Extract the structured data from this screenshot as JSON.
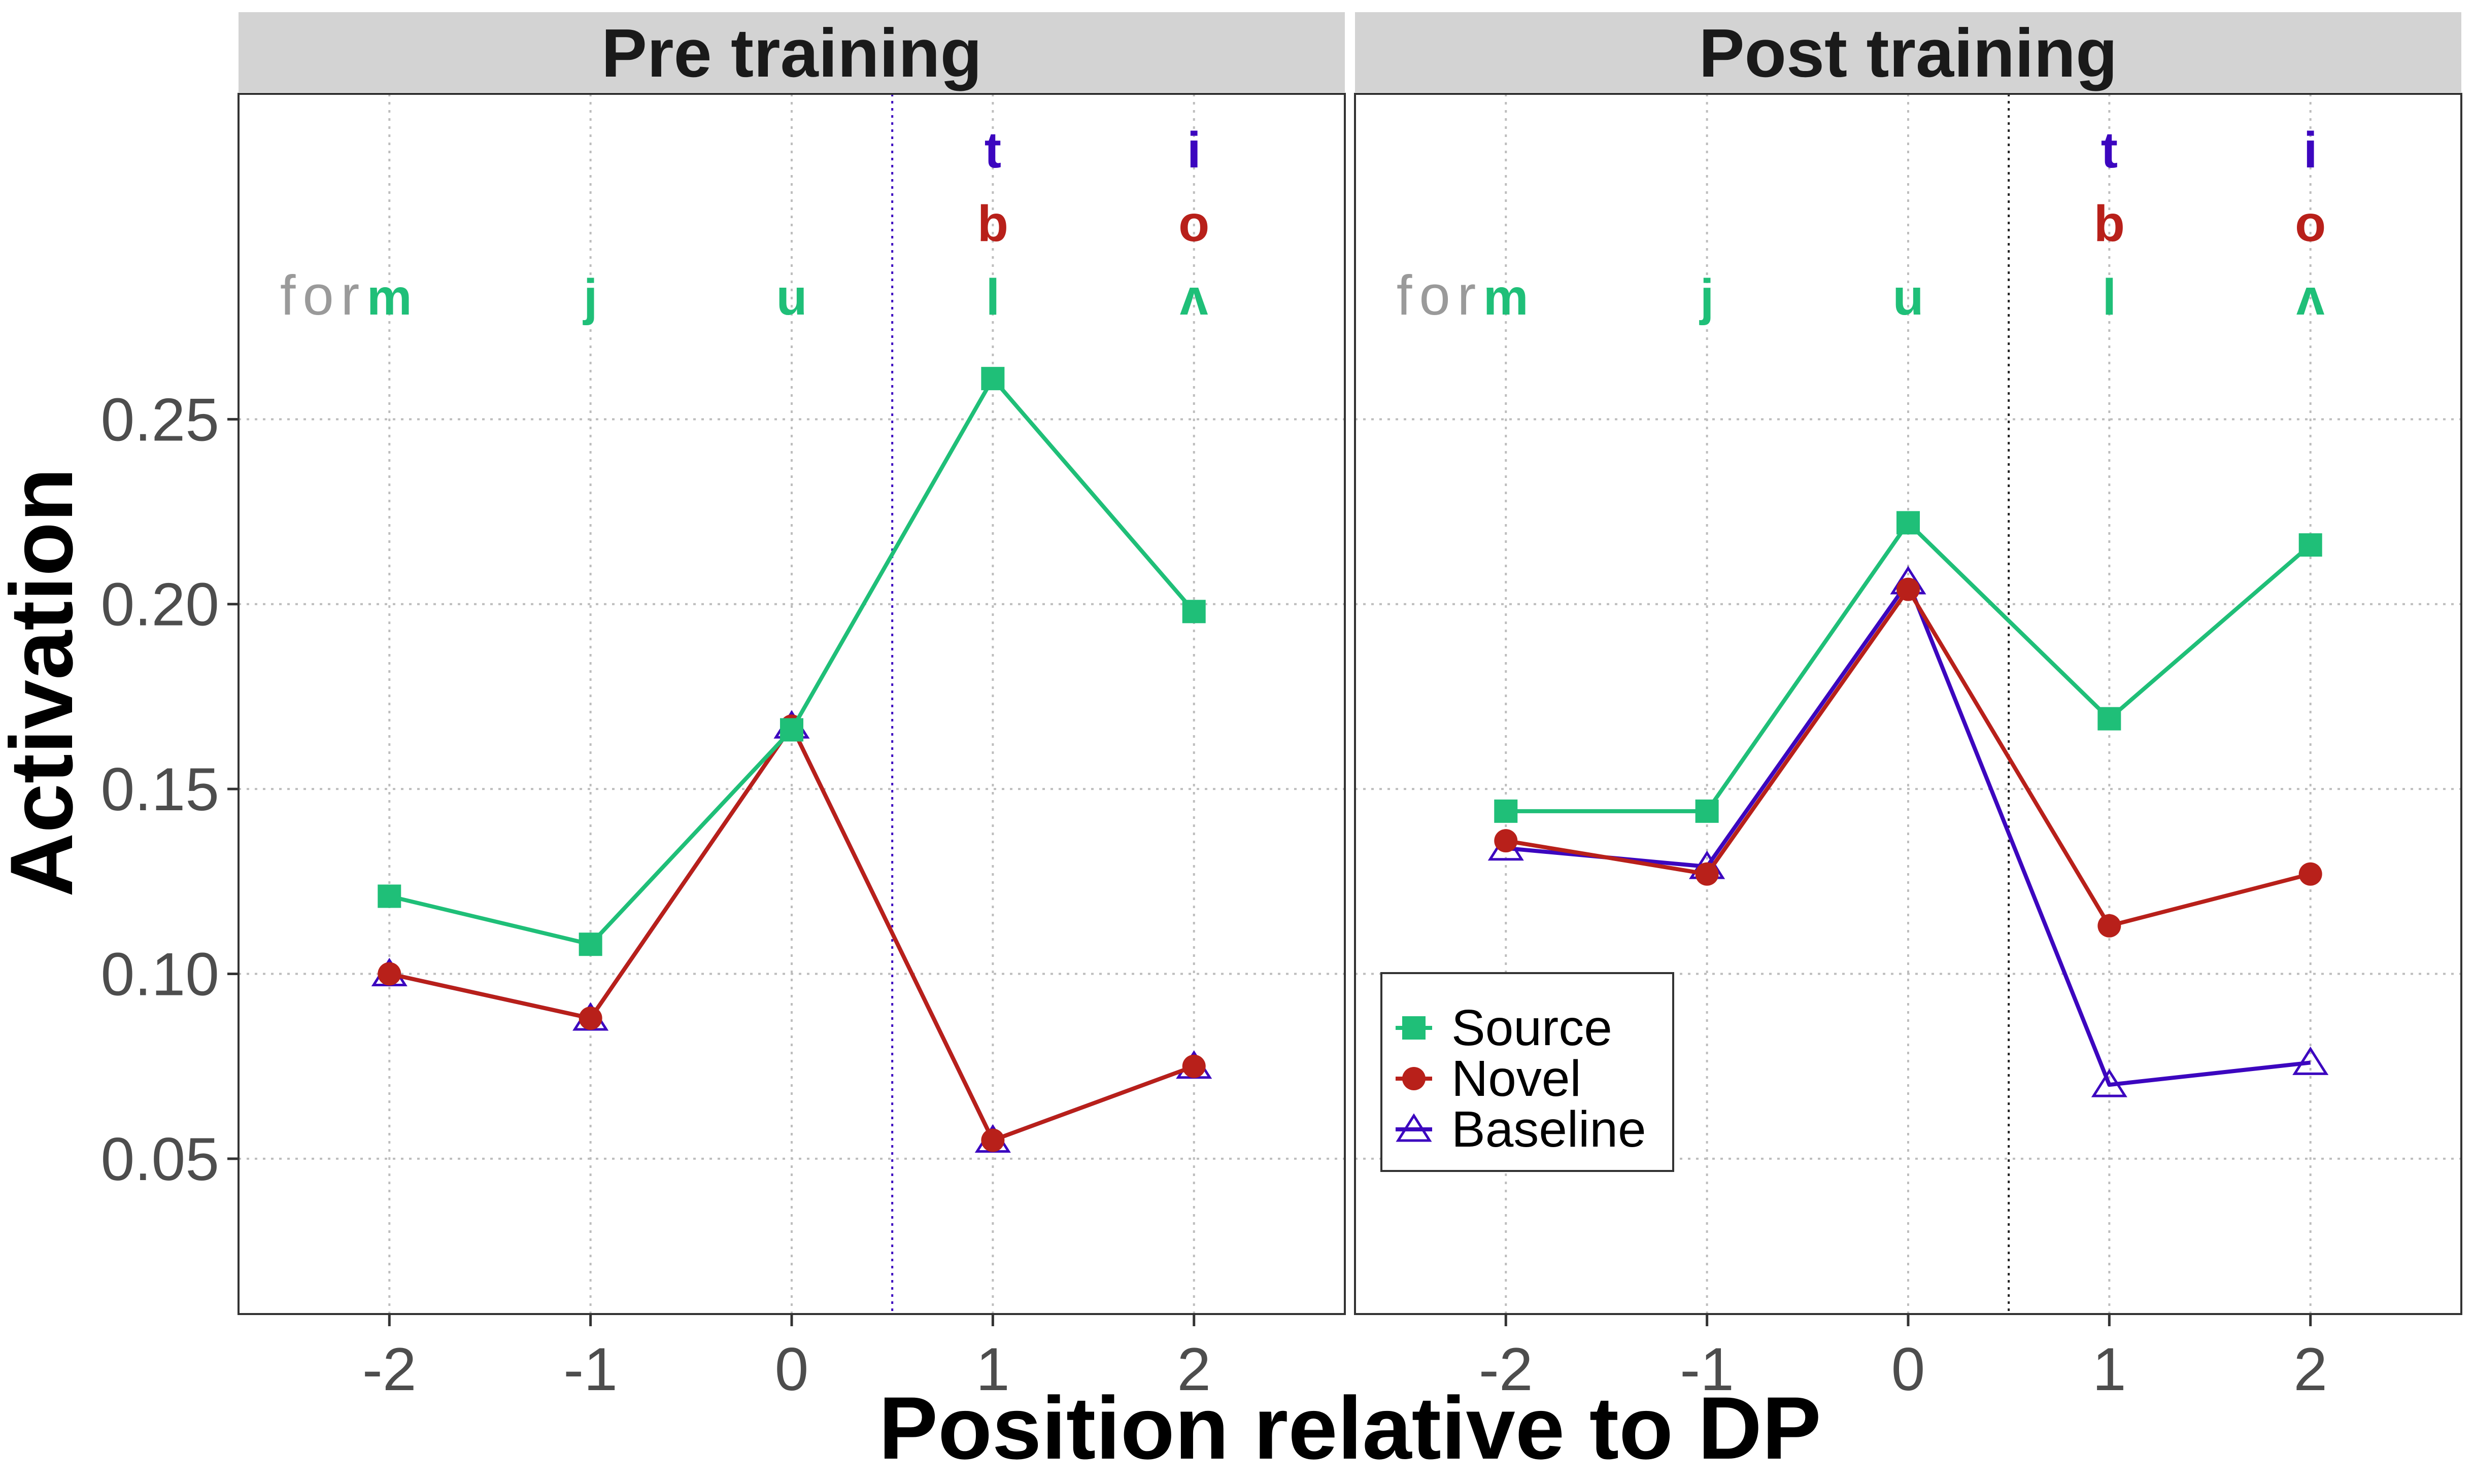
{
  "colors": {
    "source": "#1fbf78",
    "novel": "#b8201a",
    "baseline": "#3c06bf",
    "strip_bg": "#d3d3d3",
    "grid": "#bdbdbd",
    "prefix": "#9a9a9a"
  },
  "chart_data": {
    "type": "line",
    "xlabel": "Position relative to DP",
    "ylabel": "Activation",
    "x": [
      -2,
      -1,
      0,
      1,
      2
    ],
    "x_tick_labels": [
      "-2",
      "-1",
      "0",
      "1",
      "2"
    ],
    "xlim": [
      -2.75,
      2.75
    ],
    "ylim": [
      0.008,
      0.338
    ],
    "y_ticks": [
      0.05,
      0.1,
      0.15,
      0.2,
      0.25
    ],
    "y_tick_labels": [
      "0.05",
      "0.10",
      "0.15",
      "0.20",
      "0.25"
    ],
    "grid": true,
    "boundary_x": 0.5,
    "legend": {
      "placement": "bottom-left of right panel"
    },
    "prefix_text": "for",
    "phoneme_rows": [
      {
        "series": "baseline",
        "letters": [
          "",
          "",
          "",
          "t",
          "i"
        ]
      },
      {
        "series": "novel",
        "letters": [
          "",
          "",
          "",
          "b",
          "o"
        ]
      },
      {
        "series": "source",
        "letters": [
          "m",
          "j",
          "u",
          "l",
          "ʌ"
        ]
      }
    ],
    "series_style": [
      {
        "key": "source",
        "name": "Source",
        "marker": "square"
      },
      {
        "key": "novel",
        "name": "Novel",
        "marker": "circle"
      },
      {
        "key": "baseline",
        "name": "Baseline",
        "marker": "triangle-open"
      }
    ],
    "panels": [
      {
        "title": "Pre training",
        "boundary_color": "#3c06bf",
        "series": [
          {
            "key": "source",
            "name": "Source",
            "values": [
              0.121,
              0.108,
              0.166,
              0.261,
              0.198
            ]
          },
          {
            "key": "novel",
            "name": "Novel",
            "values": [
              0.1,
              0.088,
              0.167,
              0.055,
              0.075
            ]
          },
          {
            "key": "baseline",
            "name": "Baseline",
            "values": [
              0.1,
              0.088,
              0.167,
              0.055,
              0.075
            ]
          }
        ]
      },
      {
        "title": "Post training",
        "boundary_color": "#222222",
        "series": [
          {
            "key": "source",
            "name": "Source",
            "values": [
              0.144,
              0.144,
              0.222,
              0.169,
              0.216
            ]
          },
          {
            "key": "novel",
            "name": "Novel",
            "values": [
              0.136,
              0.127,
              0.204,
              0.113,
              0.127
            ]
          },
          {
            "key": "baseline",
            "name": "Baseline",
            "values": [
              0.134,
              0.129,
              0.206,
              0.07,
              0.076
            ]
          }
        ]
      }
    ]
  }
}
